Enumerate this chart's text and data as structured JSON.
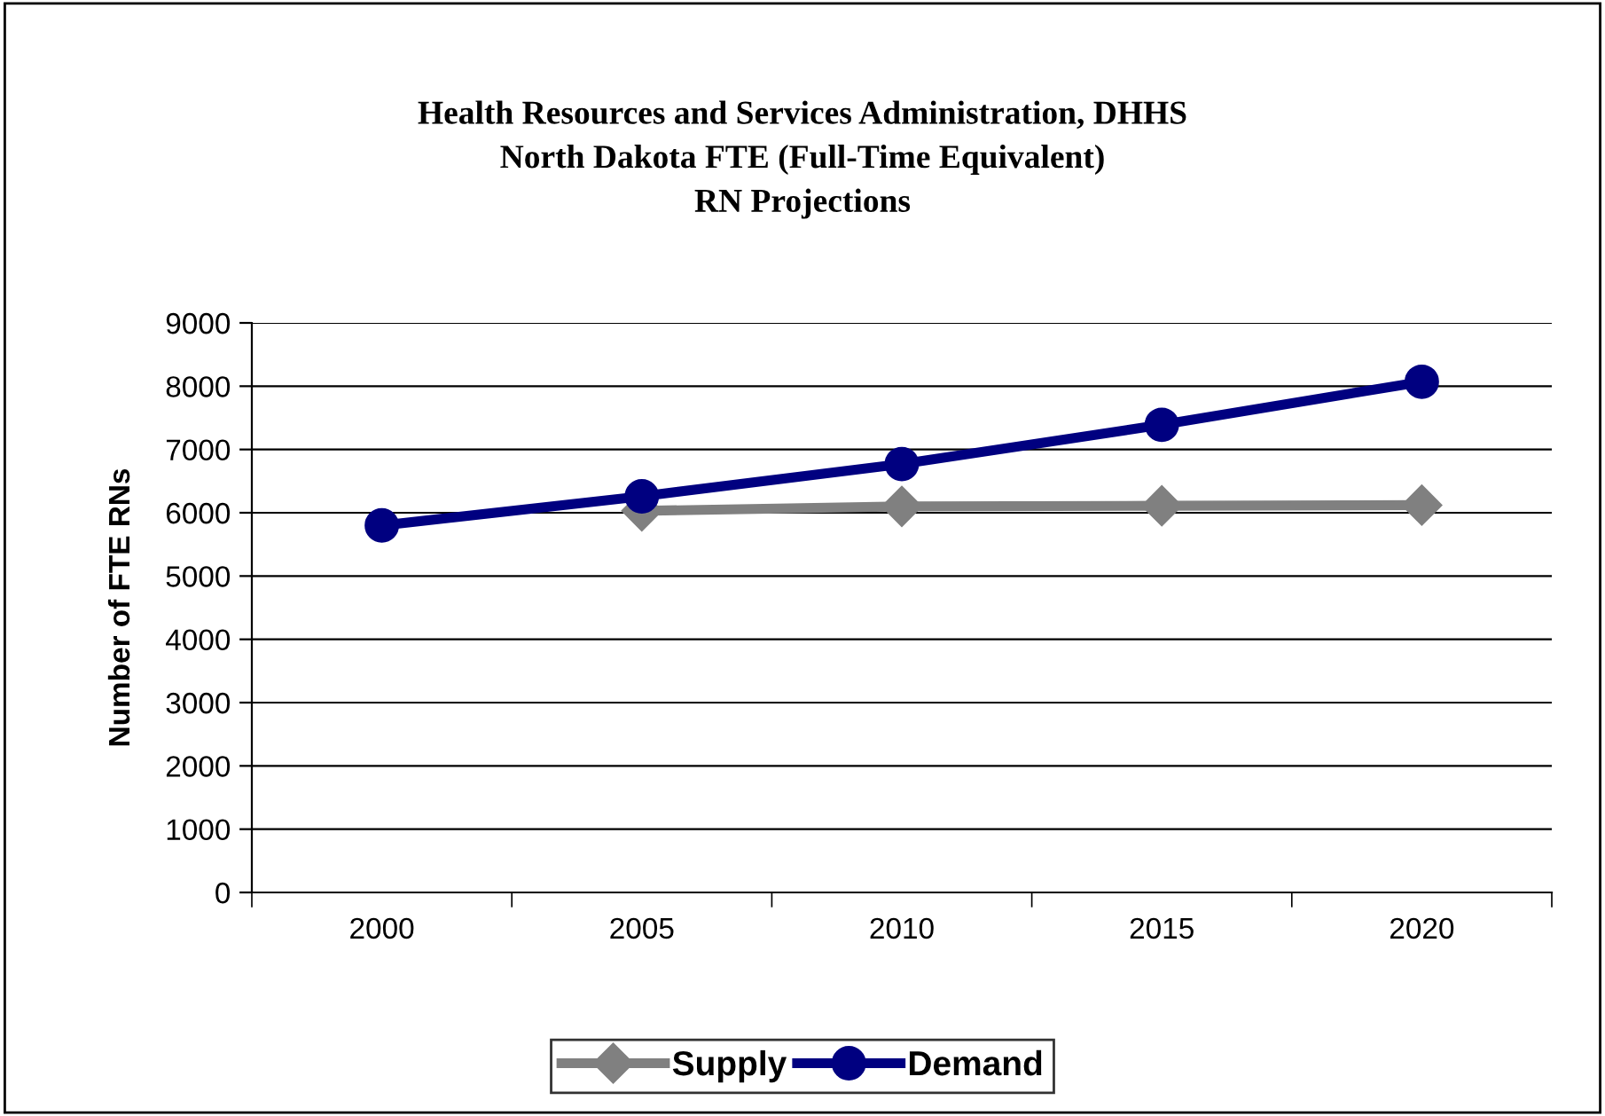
{
  "chart_data": {
    "type": "line",
    "title": "Health Resources and Services Administration, DHHS\nNorth Dakota FTE (Full-Time Equivalent)\nRN Projections",
    "ylabel": "Number of FTE RNs",
    "categories": [
      "2000",
      "2005",
      "2010",
      "2015",
      "2020"
    ],
    "series": [
      {
        "name": "Supply",
        "color": "#808080",
        "marker": "diamond",
        "values": [
          null,
          6030,
          6100,
          6110,
          6120
        ]
      },
      {
        "name": "Demand",
        "color": "#000080",
        "marker": "circle",
        "values": [
          5800,
          6260,
          6770,
          7390,
          8070
        ]
      }
    ],
    "ylim": [
      0,
      9000
    ],
    "yticks": [
      0,
      1000,
      2000,
      3000,
      4000,
      5000,
      6000,
      7000,
      8000,
      9000
    ],
    "grid": "y",
    "legend": "bottom",
    "line_style": "solid"
  }
}
